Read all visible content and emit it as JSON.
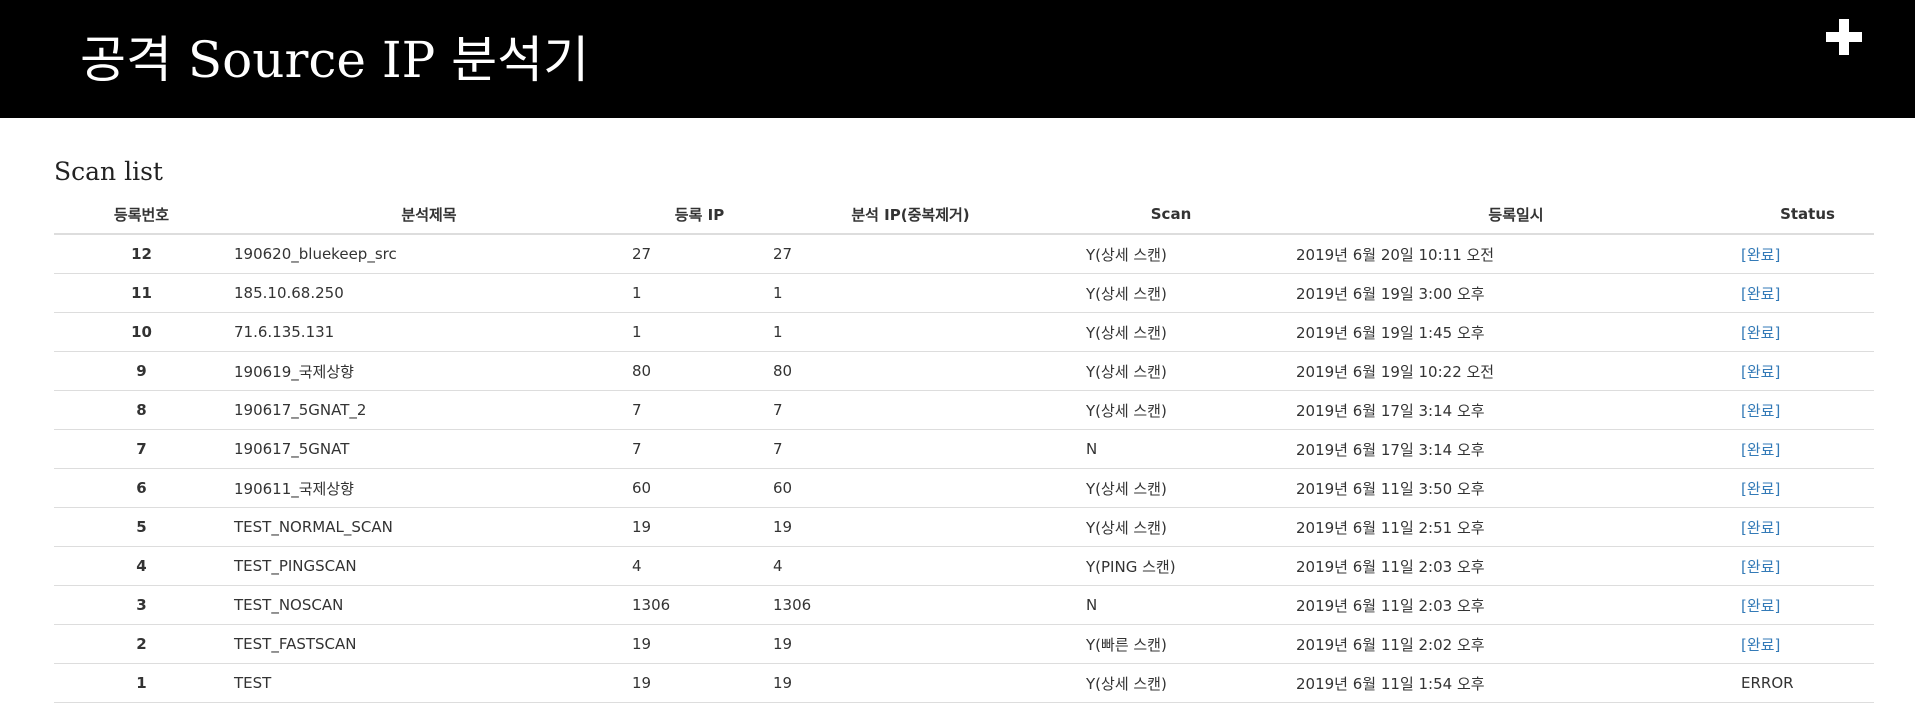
{
  "header": {
    "title": "공격 Source IP 분석기",
    "add_icon": "plus-icon"
  },
  "section": {
    "title": "Scan list"
  },
  "table": {
    "columns": [
      "등록번호",
      "분석제목",
      "등록 IP",
      "분석 IP(중복제거)",
      "Scan",
      "등록일시",
      "Status"
    ],
    "rows": [
      {
        "no": "12",
        "title": "190620_bluekeep_src",
        "reg_ip": "27",
        "analysis_ip": "27",
        "scan": "Y(상세 스캔)",
        "date": "2019년 6월 20일 10:11 오전",
        "status": "[완료]",
        "status_link": true
      },
      {
        "no": "11",
        "title": "185.10.68.250",
        "reg_ip": "1",
        "analysis_ip": "1",
        "scan": "Y(상세 스캔)",
        "date": "2019년 6월 19일 3:00 오후",
        "status": "[완료]",
        "status_link": true
      },
      {
        "no": "10",
        "title": "71.6.135.131",
        "reg_ip": "1",
        "analysis_ip": "1",
        "scan": "Y(상세 스캔)",
        "date": "2019년 6월 19일 1:45 오후",
        "status": "[완료]",
        "status_link": true
      },
      {
        "no": "9",
        "title": "190619_국제상향",
        "reg_ip": "80",
        "analysis_ip": "80",
        "scan": "Y(상세 스캔)",
        "date": "2019년 6월 19일 10:22 오전",
        "status": "[완료]",
        "status_link": true
      },
      {
        "no": "8",
        "title": "190617_5GNAT_2",
        "reg_ip": "7",
        "analysis_ip": "7",
        "scan": "Y(상세 스캔)",
        "date": "2019년 6월 17일 3:14 오후",
        "status": "[완료]",
        "status_link": true
      },
      {
        "no": "7",
        "title": "190617_5GNAT",
        "reg_ip": "7",
        "analysis_ip": "7",
        "scan": "N",
        "date": "2019년 6월 17일 3:14 오후",
        "status": "[완료]",
        "status_link": true
      },
      {
        "no": "6",
        "title": "190611_국제상향",
        "reg_ip": "60",
        "analysis_ip": "60",
        "scan": "Y(상세 스캔)",
        "date": "2019년 6월 11일 3:50 오후",
        "status": "[완료]",
        "status_link": true
      },
      {
        "no": "5",
        "title": "TEST_NORMAL_SCAN",
        "reg_ip": "19",
        "analysis_ip": "19",
        "scan": "Y(상세 스캔)",
        "date": "2019년 6월 11일 2:51 오후",
        "status": "[완료]",
        "status_link": true
      },
      {
        "no": "4",
        "title": "TEST_PINGSCAN",
        "reg_ip": "4",
        "analysis_ip": "4",
        "scan": "Y(PING 스캔)",
        "date": "2019년 6월 11일 2:03 오후",
        "status": "[완료]",
        "status_link": true
      },
      {
        "no": "3",
        "title": "TEST_NOSCAN",
        "reg_ip": "1306",
        "analysis_ip": "1306",
        "scan": "N",
        "date": "2019년 6월 11일 2:03 오후",
        "status": "[완료]",
        "status_link": true
      },
      {
        "no": "2",
        "title": "TEST_FASTSCAN",
        "reg_ip": "19",
        "analysis_ip": "19",
        "scan": "Y(빠른 스캔)",
        "date": "2019년 6월 11일 2:02 오후",
        "status": "[완료]",
        "status_link": true
      },
      {
        "no": "1",
        "title": "TEST",
        "reg_ip": "19",
        "analysis_ip": "19",
        "scan": "Y(상세 스캔)",
        "date": "2019년 6월 11일 1:54 오후",
        "status": "ERROR",
        "status_link": false
      }
    ]
  },
  "colors": {
    "header_bg": "#000000",
    "link": "#337ab7",
    "text": "#333333",
    "border": "#dddddd"
  }
}
